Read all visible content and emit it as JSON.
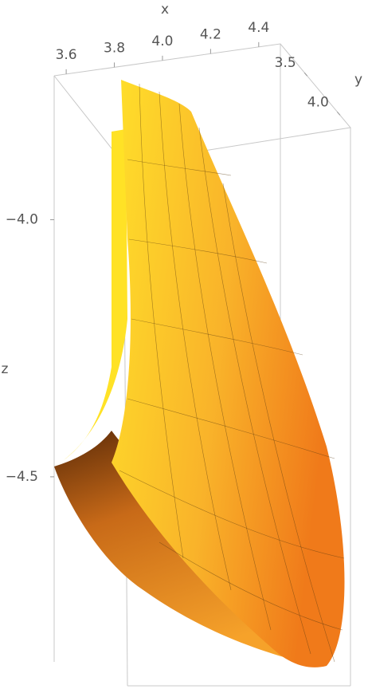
{
  "chart_data": {
    "type": "surface3d",
    "xlabel": "x",
    "ylabel": "y",
    "zlabel": "z",
    "xlim": [
      3.55,
      4.49
    ],
    "ylim": [
      3.09,
      4.16
    ],
    "zlim": [
      -4.86,
      -3.72
    ],
    "xticks": [
      3.6,
      3.8,
      {
        "value": 4,
        "label": "4.0"
      },
      4.2,
      4.4
    ],
    "yticks": [
      3.5,
      {
        "value": 4,
        "label": "4.0"
      }
    ],
    "zticks": [
      {
        "value": -4,
        "label": "−4.0"
      },
      {
        "value": -4.5,
        "label": "−4.5"
      }
    ],
    "color": "#f7b12a"
  }
}
